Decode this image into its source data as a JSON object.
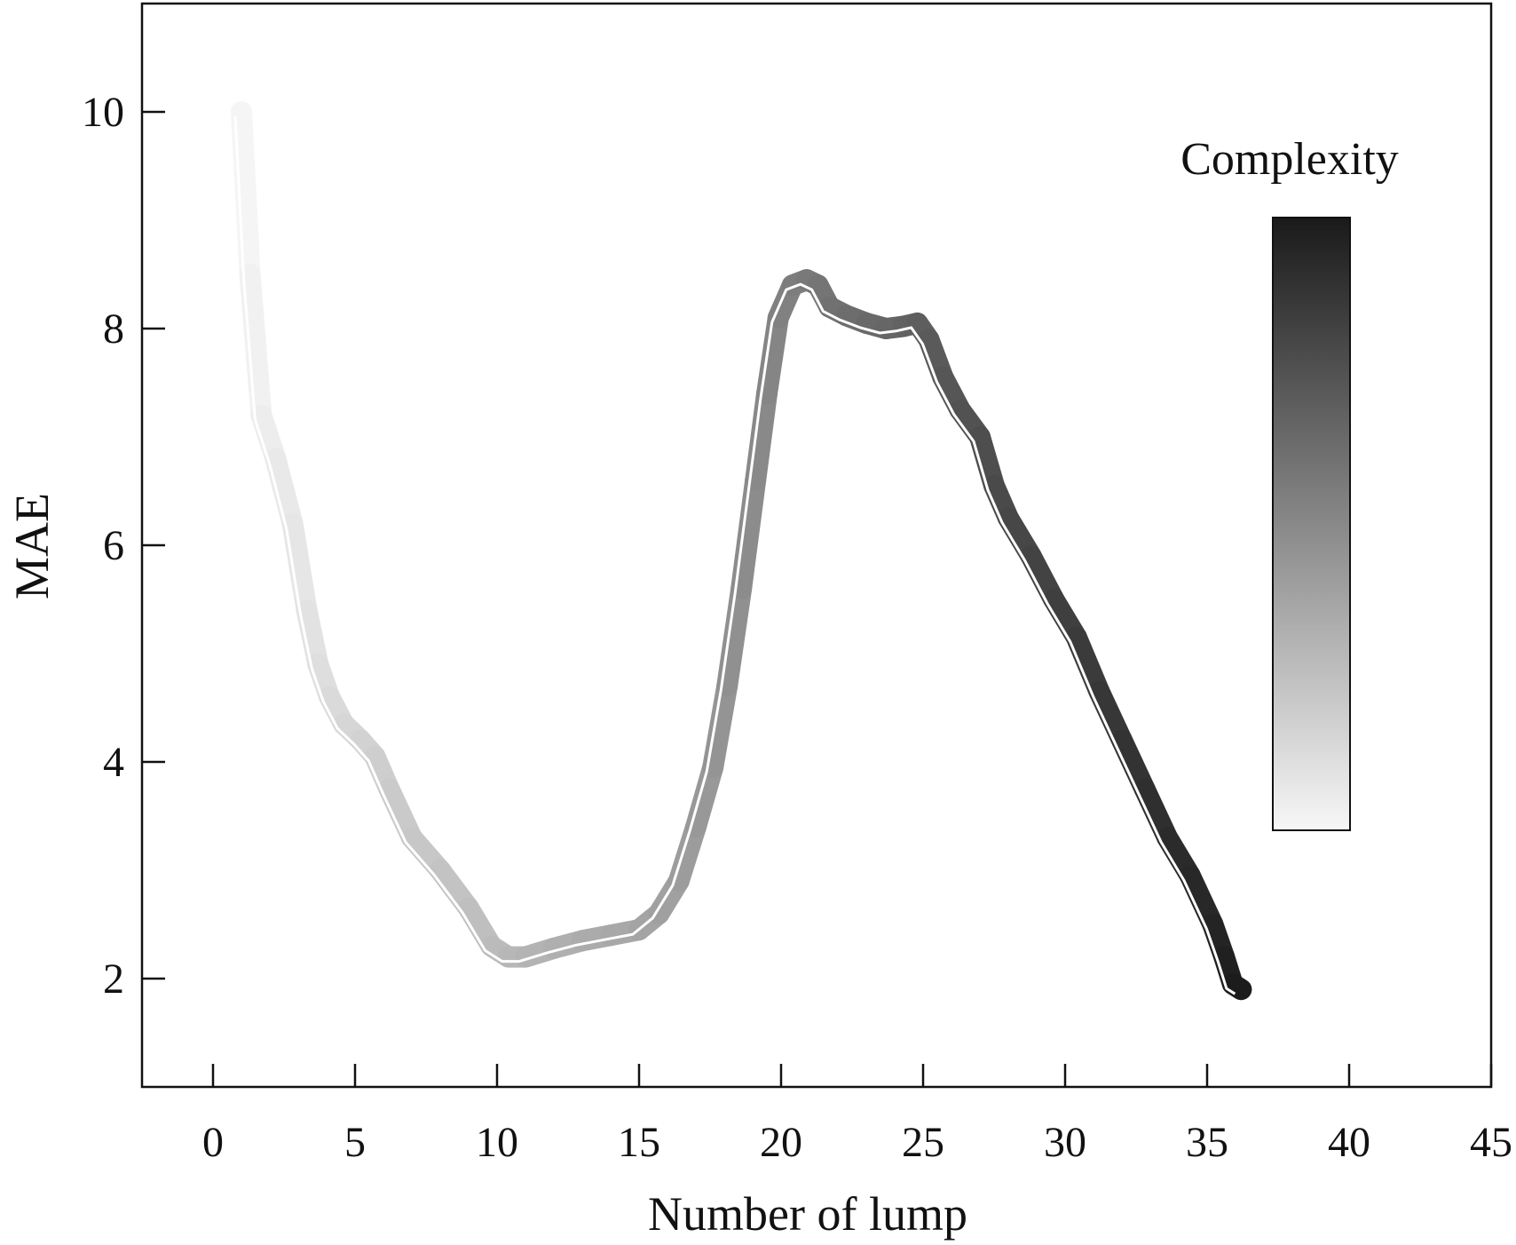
{
  "chart_data": {
    "type": "line",
    "xlabel": "Number of lump",
    "ylabel": "MAE",
    "xlim": [
      -2.5,
      45
    ],
    "ylim": [
      1,
      11
    ],
    "xticks": [
      0,
      5,
      10,
      15,
      20,
      25,
      30,
      35,
      40,
      45
    ],
    "yticks": [
      2,
      4,
      6,
      8,
      10
    ],
    "grid": false,
    "legend": {
      "title": "Complexity",
      "type": "colorbar",
      "placement": "top-right",
      "low_color": "#f7f7f7",
      "high_color": "#1a1a1a"
    },
    "series": [
      {
        "color_encoding": "complexity",
        "x": [
          1,
          1.3,
          1.7,
          2.2,
          2.8,
          3.3,
          3.7,
          4.1,
          4.6,
          5.2,
          5.7,
          6.2,
          7,
          8,
          9,
          9.8,
          10.4,
          11,
          12,
          13,
          14,
          15,
          15.7,
          16.4,
          17,
          17.6,
          18.1,
          18.6,
          19.1,
          19.5,
          19.9,
          20.4,
          20.9,
          21.3,
          21.7,
          22.3,
          23,
          23.7,
          24.3,
          24.8,
          25.2,
          25.7,
          26.3,
          27,
          27.5,
          28,
          28.8,
          29.6,
          30.4,
          31.2,
          32,
          32.8,
          33.6,
          34.4,
          35.2,
          35.6,
          35.9,
          36.2
        ],
        "y": [
          10,
          8.5,
          7.2,
          6.8,
          6.2,
          5.4,
          4.9,
          4.6,
          4.35,
          4.2,
          4.05,
          3.75,
          3.3,
          3.0,
          2.65,
          2.3,
          2.2,
          2.2,
          2.28,
          2.35,
          2.4,
          2.45,
          2.6,
          2.9,
          3.4,
          3.95,
          4.7,
          5.6,
          6.6,
          7.4,
          8.1,
          8.4,
          8.45,
          8.4,
          8.2,
          8.12,
          8.05,
          8.0,
          8.02,
          8.05,
          7.9,
          7.55,
          7.25,
          7.0,
          6.55,
          6.25,
          5.9,
          5.5,
          5.15,
          4.65,
          4.2,
          3.75,
          3.3,
          2.95,
          2.5,
          2.2,
          1.95,
          1.9
        ]
      }
    ]
  }
}
